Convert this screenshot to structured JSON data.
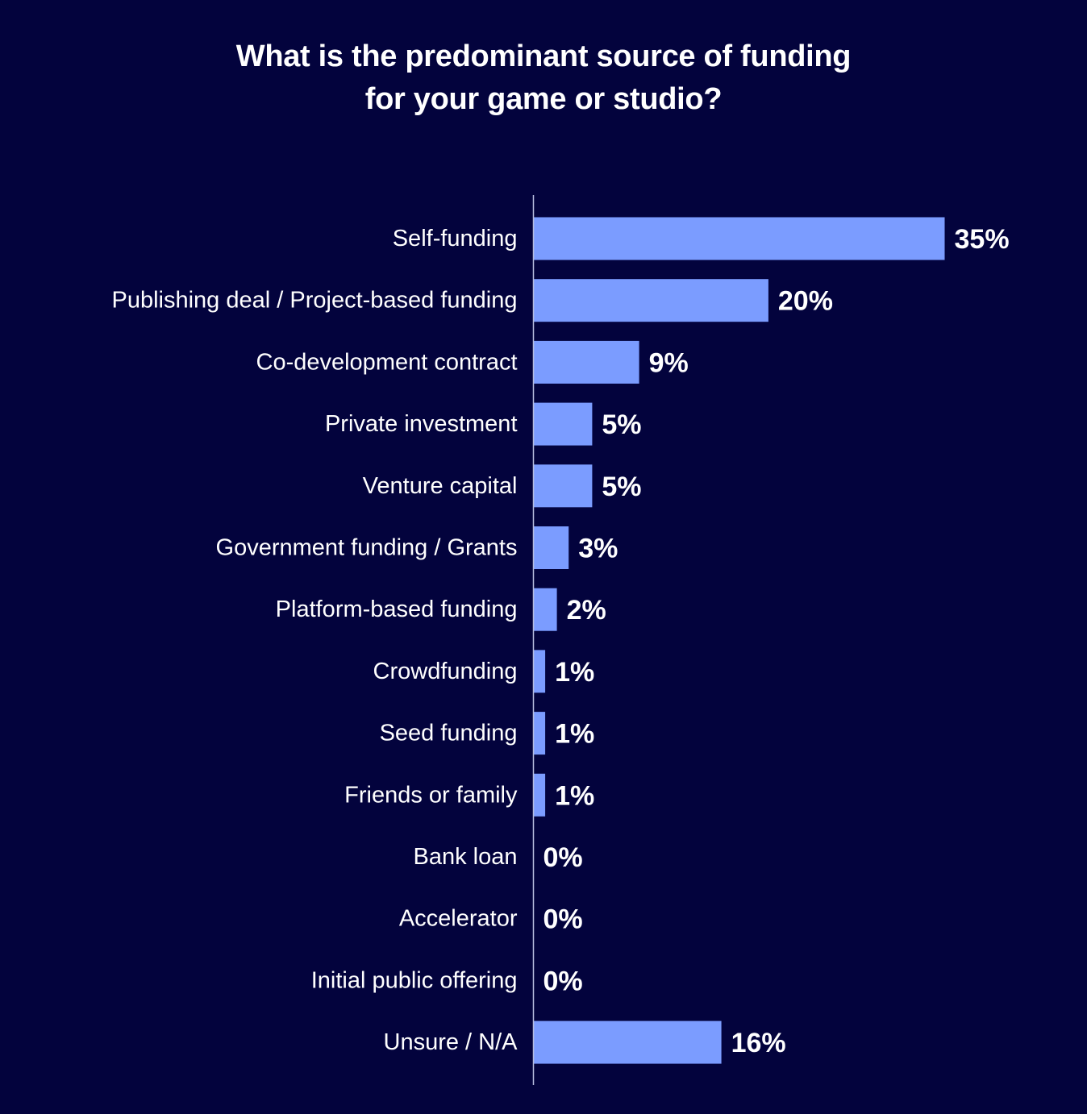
{
  "title": {
    "line1": "What is the predominant source of funding",
    "line2": "for your game or studio?"
  },
  "colors": {
    "background": "#03033d",
    "bar": "#7b9cff",
    "axis": "#b8bfe0",
    "text": "#ffffff"
  },
  "chart_data": {
    "type": "bar",
    "orientation": "horizontal",
    "title": "What is the predominant source of funding for your game or studio?",
    "categories": [
      "Self-funding",
      "Publishing deal / Project-based funding",
      "Co-development contract",
      "Private investment",
      "Venture capital",
      "Government funding / Grants",
      "Platform-based funding",
      "Crowdfunding",
      "Seed funding",
      "Friends or family",
      "Bank loan",
      "Accelerator",
      "Initial public offering",
      "Unsure / N/A"
    ],
    "values": [
      35,
      20,
      9,
      5,
      5,
      3,
      2,
      1,
      1,
      1,
      0,
      0,
      0,
      16
    ],
    "value_labels": [
      "35%",
      "20%",
      "9%",
      "5%",
      "5%",
      "3%",
      "2%",
      "1%",
      "1%",
      "1%",
      "0%",
      "0%",
      "0%",
      "16%"
    ],
    "unit": "%",
    "xlim": [
      0,
      35
    ],
    "grid": false,
    "legend": "none"
  }
}
